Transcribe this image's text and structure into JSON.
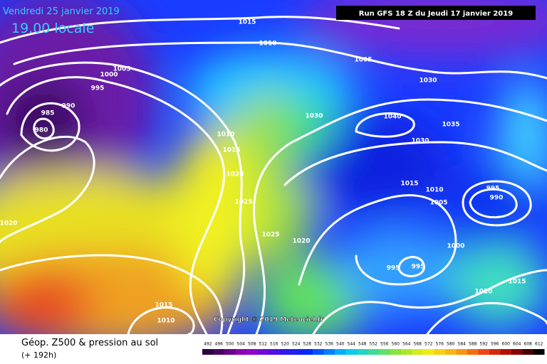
{
  "header": {
    "date": "Vendredi 25 janvier 2019",
    "time": "19.00 locale",
    "run": "Run GFS 18 Z du Jeudi 17 janvier 2019",
    "copyright": "Copyright © 2019 Meteociel.fr"
  },
  "footer": {
    "title": "Géop. Z500 & pression au sol",
    "lead": "(+ 192h)"
  },
  "isobar_labels": [
    1015,
    1010,
    1005,
    1000,
    995,
    990,
    985,
    980,
    1005,
    1030,
    1030,
    1040,
    1035,
    1010,
    1015,
    1030,
    1020,
    1015,
    1010,
    995,
    990,
    1025,
    1005,
    1020,
    1025,
    1020,
    1000,
    995,
    995,
    1010,
    1015,
    1015,
    1010
  ],
  "scale": [
    492,
    496,
    500,
    504,
    508,
    512,
    516,
    520,
    524,
    528,
    532,
    536,
    540,
    544,
    548,
    552,
    556,
    560,
    564,
    568,
    572,
    576,
    580,
    584,
    588,
    592,
    596,
    600,
    604,
    608,
    612
  ]
}
